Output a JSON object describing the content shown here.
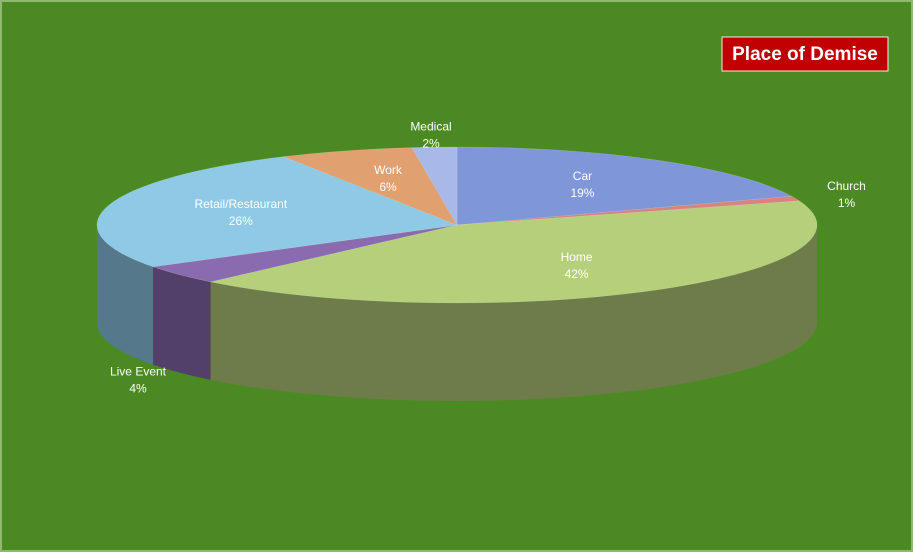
{
  "chart_data": {
    "type": "pie3d",
    "title": "Place of Demise",
    "categories": [
      "Car",
      "Church",
      "Home",
      "Live Event",
      "Retail/Restaurant",
      "Work",
      "Medical"
    ],
    "values": [
      19,
      1,
      42,
      4,
      26,
      6,
      2
    ],
    "value_labels": [
      "19%",
      "1%",
      "42%",
      "4%",
      "26%",
      "6%",
      "2%"
    ],
    "colors": [
      "#7f96d8",
      "#d9827f",
      "#b5cf7a",
      "#8a6bb0",
      "#8ec9e6",
      "#e0a070",
      "#a8b8e8"
    ]
  }
}
